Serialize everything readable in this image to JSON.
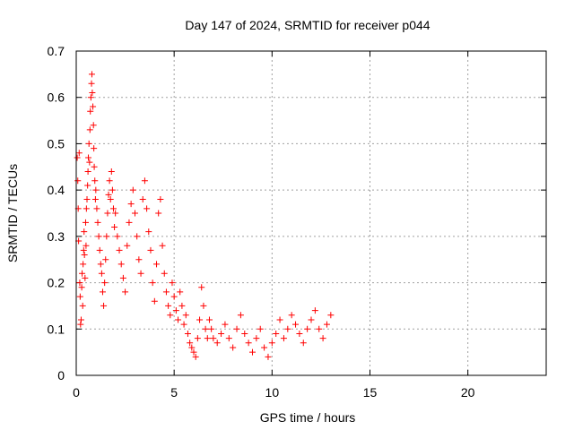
{
  "chart_data": {
    "type": "scatter",
    "title": "Day 147 of 2024, SRMTID for receiver p044",
    "xlabel": "GPS time / hours",
    "ylabel": "SRMTID / TECUs",
    "xlim": [
      0,
      24
    ],
    "ylim": [
      0,
      0.7
    ],
    "xticks": [
      0,
      5,
      10,
      15,
      20
    ],
    "yticks": [
      0,
      0.1,
      0.2,
      0.3,
      0.4,
      0.5,
      0.6,
      0.7
    ],
    "xtick_labels": [
      "0",
      "5",
      "10",
      "15",
      "20"
    ],
    "ytick_labels": [
      "0",
      "0.1",
      "0.2",
      "0.3",
      "0.4",
      "0.5",
      "0.6",
      "0.7"
    ],
    "grid": true,
    "marker": "+",
    "marker_color": "#ff0000",
    "series": [
      {
        "name": "SRMTID",
        "points": [
          [
            0.05,
            0.47
          ],
          [
            0.08,
            0.42
          ],
          [
            0.1,
            0.36
          ],
          [
            0.12,
            0.29
          ],
          [
            0.15,
            0.48
          ],
          [
            0.18,
            0.2
          ],
          [
            0.2,
            0.17
          ],
          [
            0.22,
            0.11
          ],
          [
            0.25,
            0.12
          ],
          [
            0.28,
            0.19
          ],
          [
            0.3,
            0.22
          ],
          [
            0.33,
            0.15
          ],
          [
            0.35,
            0.24
          ],
          [
            0.38,
            0.27
          ],
          [
            0.4,
            0.31
          ],
          [
            0.42,
            0.26
          ],
          [
            0.45,
            0.21
          ],
          [
            0.48,
            0.33
          ],
          [
            0.5,
            0.28
          ],
          [
            0.52,
            0.36
          ],
          [
            0.55,
            0.38
          ],
          [
            0.58,
            0.41
          ],
          [
            0.6,
            0.44
          ],
          [
            0.62,
            0.47
          ],
          [
            0.65,
            0.5
          ],
          [
            0.68,
            0.46
          ],
          [
            0.7,
            0.53
          ],
          [
            0.72,
            0.57
          ],
          [
            0.75,
            0.6
          ],
          [
            0.78,
            0.63
          ],
          [
            0.8,
            0.65
          ],
          [
            0.82,
            0.61
          ],
          [
            0.85,
            0.58
          ],
          [
            0.88,
            0.54
          ],
          [
            0.9,
            0.49
          ],
          [
            0.92,
            0.45
          ],
          [
            0.95,
            0.42
          ],
          [
            0.98,
            0.38
          ],
          [
            1.0,
            0.4
          ],
          [
            1.05,
            0.36
          ],
          [
            1.1,
            0.33
          ],
          [
            1.15,
            0.3
          ],
          [
            1.2,
            0.27
          ],
          [
            1.25,
            0.24
          ],
          [
            1.3,
            0.22
          ],
          [
            1.35,
            0.18
          ],
          [
            1.4,
            0.15
          ],
          [
            1.45,
            0.2
          ],
          [
            1.5,
            0.25
          ],
          [
            1.55,
            0.3
          ],
          [
            1.6,
            0.35
          ],
          [
            1.65,
            0.39
          ],
          [
            1.7,
            0.42
          ],
          [
            1.75,
            0.38
          ],
          [
            1.8,
            0.44
          ],
          [
            1.85,
            0.4
          ],
          [
            1.9,
            0.36
          ],
          [
            1.95,
            0.32
          ],
          [
            2.0,
            0.35
          ],
          [
            2.1,
            0.3
          ],
          [
            2.2,
            0.27
          ],
          [
            2.3,
            0.24
          ],
          [
            2.4,
            0.21
          ],
          [
            2.5,
            0.18
          ],
          [
            2.6,
            0.28
          ],
          [
            2.7,
            0.33
          ],
          [
            2.8,
            0.37
          ],
          [
            2.9,
            0.4
          ],
          [
            3.0,
            0.35
          ],
          [
            3.1,
            0.3
          ],
          [
            3.2,
            0.25
          ],
          [
            3.3,
            0.22
          ],
          [
            3.4,
            0.38
          ],
          [
            3.5,
            0.42
          ],
          [
            3.6,
            0.36
          ],
          [
            3.7,
            0.31
          ],
          [
            3.8,
            0.27
          ],
          [
            3.9,
            0.2
          ],
          [
            4.0,
            0.16
          ],
          [
            4.1,
            0.24
          ],
          [
            4.2,
            0.35
          ],
          [
            4.3,
            0.38
          ],
          [
            4.4,
            0.28
          ],
          [
            4.5,
            0.22
          ],
          [
            4.6,
            0.18
          ],
          [
            4.7,
            0.15
          ],
          [
            4.8,
            0.13
          ],
          [
            4.9,
            0.2
          ],
          [
            5.0,
            0.17
          ],
          [
            5.1,
            0.14
          ],
          [
            5.2,
            0.12
          ],
          [
            5.3,
            0.18
          ],
          [
            5.4,
            0.15
          ],
          [
            5.5,
            0.11
          ],
          [
            5.6,
            0.13
          ],
          [
            5.7,
            0.09
          ],
          [
            5.8,
            0.07
          ],
          [
            5.9,
            0.06
          ],
          [
            6.0,
            0.05
          ],
          [
            6.1,
            0.04
          ],
          [
            6.2,
            0.08
          ],
          [
            6.3,
            0.12
          ],
          [
            6.4,
            0.19
          ],
          [
            6.5,
            0.15
          ],
          [
            6.6,
            0.1
          ],
          [
            6.7,
            0.08
          ],
          [
            6.8,
            0.12
          ],
          [
            6.9,
            0.1
          ],
          [
            7.0,
            0.08
          ],
          [
            7.2,
            0.07
          ],
          [
            7.4,
            0.09
          ],
          [
            7.6,
            0.11
          ],
          [
            7.8,
            0.08
          ],
          [
            8.0,
            0.06
          ],
          [
            8.2,
            0.1
          ],
          [
            8.4,
            0.13
          ],
          [
            8.6,
            0.09
          ],
          [
            8.8,
            0.07
          ],
          [
            9.0,
            0.05
          ],
          [
            9.2,
            0.08
          ],
          [
            9.4,
            0.1
          ],
          [
            9.6,
            0.06
          ],
          [
            9.8,
            0.04
          ],
          [
            10.0,
            0.07
          ],
          [
            10.2,
            0.09
          ],
          [
            10.4,
            0.12
          ],
          [
            10.6,
            0.08
          ],
          [
            10.8,
            0.1
          ],
          [
            11.0,
            0.13
          ],
          [
            11.2,
            0.11
          ],
          [
            11.4,
            0.09
          ],
          [
            11.6,
            0.07
          ],
          [
            11.8,
            0.1
          ],
          [
            12.0,
            0.12
          ],
          [
            12.2,
            0.14
          ],
          [
            12.4,
            0.1
          ],
          [
            12.6,
            0.08
          ],
          [
            12.8,
            0.11
          ],
          [
            13.0,
            0.13
          ]
        ]
      }
    ]
  }
}
